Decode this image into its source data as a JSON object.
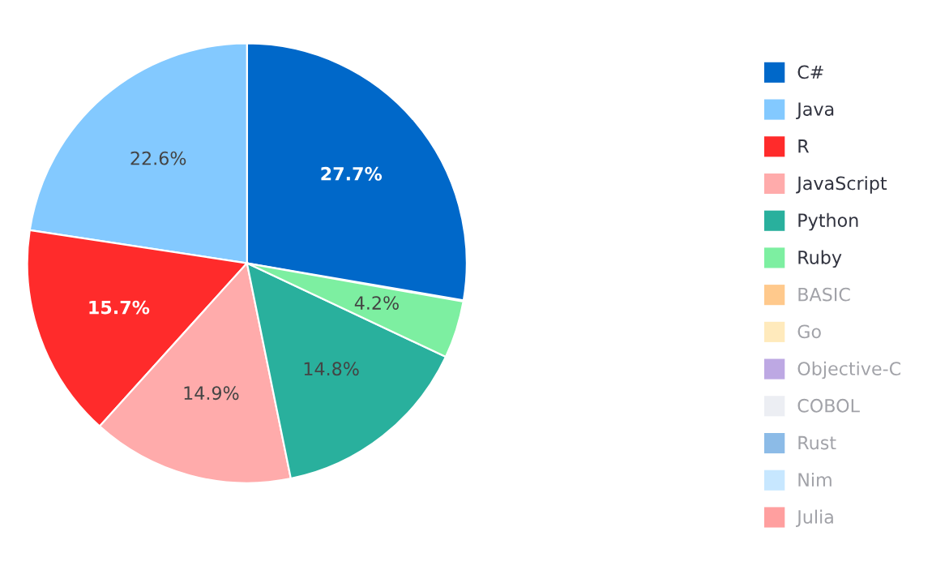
{
  "chart_data": {
    "type": "pie",
    "categories": [
      "C#",
      "Java",
      "R",
      "JavaScript",
      "Python",
      "Ruby",
      "BASIC",
      "Go",
      "Objective-C",
      "COBOL",
      "Rust",
      "Nim",
      "Julia"
    ],
    "values": [
      27.7,
      22.6,
      15.7,
      14.9,
      14.8,
      4.2,
      null,
      null,
      null,
      null,
      null,
      null,
      null
    ],
    "colors": [
      "#0068c9",
      "#83c9ff",
      "#ff2b2b",
      "#ffabab",
      "#29b09d",
      "#7defa1",
      "#ff8700",
      "#ffd16a",
      "#6d3fc0",
      "#d5dae5",
      "#0068c9",
      "#83c9ff",
      "#ff2b2b"
    ],
    "value_labels": [
      "27.7%",
      "22.6%",
      "15.7%",
      "14.9%",
      "14.8%",
      "4.2%",
      null,
      null,
      null,
      null,
      null,
      null,
      null
    ],
    "legend": "right"
  }
}
